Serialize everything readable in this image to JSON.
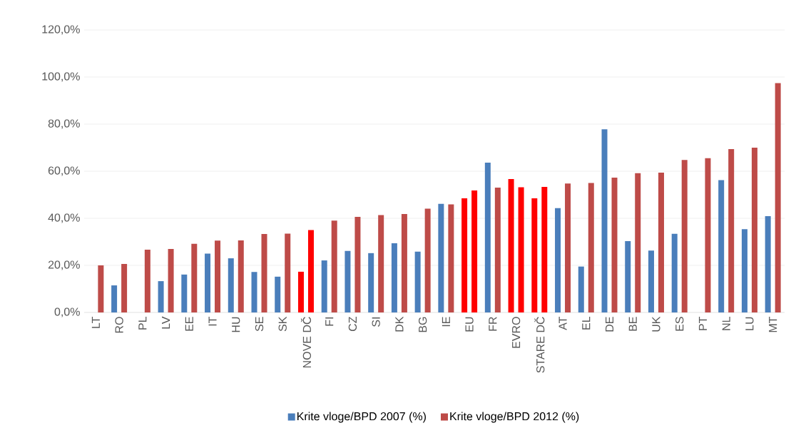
{
  "chart_data": {
    "type": "bar",
    "categories": [
      "LT",
      "RO",
      "PL",
      "LV",
      "EE",
      "IT",
      "HU",
      "SE",
      "SK",
      "NOVE DČ",
      "FI",
      "CZ",
      "SI",
      "DK",
      "BG",
      "IE",
      "EU",
      "FR",
      "EVRO",
      "STARE DČ",
      "AT",
      "EL",
      "DE",
      "BE",
      "UK",
      "ES",
      "PT",
      "NL",
      "LU",
      "MT"
    ],
    "series": [
      {
        "name": "Krite vloge/BPD 2007 (%)",
        "color": "#4a7ebb",
        "colors": [
          "#4a7ebb",
          "#4a7ebb",
          "#4a7ebb",
          "#4a7ebb",
          "#4a7ebb",
          "#4a7ebb",
          "#4a7ebb",
          "#4a7ebb",
          "#4a7ebb",
          "#ff0000",
          "#4a7ebb",
          "#4a7ebb",
          "#4a7ebb",
          "#4a7ebb",
          "#4a7ebb",
          "#4a7ebb",
          "#ff0000",
          "#4a7ebb",
          "#ff0000",
          "#ff0000",
          "#4a7ebb",
          "#4a7ebb",
          "#4a7ebb",
          "#4a7ebb",
          "#4a7ebb",
          "#4a7ebb",
          "#4a7ebb",
          "#4a7ebb",
          "#4a7ebb",
          "#4a7ebb"
        ],
        "values": [
          null,
          11.5,
          null,
          13.3,
          16.1,
          25.0,
          23.0,
          17.2,
          15.2,
          17.3,
          22.1,
          26.1,
          25.2,
          29.4,
          25.8,
          46.1,
          48.5,
          63.6,
          56.7,
          48.5,
          44.3,
          19.5,
          77.8,
          30.3,
          26.3,
          33.4,
          null,
          56.2,
          35.4,
          40.9
        ]
      },
      {
        "name": "Krite vloge/BPD 2012 (%)",
        "color": "#be4b48",
        "colors": [
          "#be4b48",
          "#be4b48",
          "#be4b48",
          "#be4b48",
          "#be4b48",
          "#be4b48",
          "#be4b48",
          "#be4b48",
          "#be4b48",
          "#ff0000",
          "#be4b48",
          "#be4b48",
          "#be4b48",
          "#be4b48",
          "#be4b48",
          "#be4b48",
          "#ff0000",
          "#be4b48",
          "#ff0000",
          "#ff0000",
          "#be4b48",
          "#be4b48",
          "#be4b48",
          "#be4b48",
          "#be4b48",
          "#be4b48",
          "#be4b48",
          "#be4b48",
          "#be4b48",
          "#be4b48"
        ],
        "values": [
          20.0,
          20.6,
          26.7,
          27.0,
          29.2,
          30.5,
          30.6,
          33.3,
          33.5,
          35.0,
          39.0,
          40.6,
          41.4,
          41.8,
          44.1,
          45.9,
          51.8,
          53.0,
          53.2,
          53.3,
          54.8,
          55.0,
          57.3,
          59.2,
          59.4,
          64.8,
          65.5,
          69.4,
          70.0,
          97.4
        ]
      }
    ],
    "ylim": [
      0,
      120
    ],
    "yticks": [
      {
        "value": 0,
        "label": "0,0%"
      },
      {
        "value": 20,
        "label": "20,0%"
      },
      {
        "value": 40,
        "label": "40,0%"
      },
      {
        "value": 60,
        "label": "60,0%"
      },
      {
        "value": 80,
        "label": "80,0%"
      },
      {
        "value": 100,
        "label": "100,0%"
      },
      {
        "value": 120,
        "label": "120,0%"
      }
    ],
    "grid": "y",
    "legend": "bottom"
  }
}
